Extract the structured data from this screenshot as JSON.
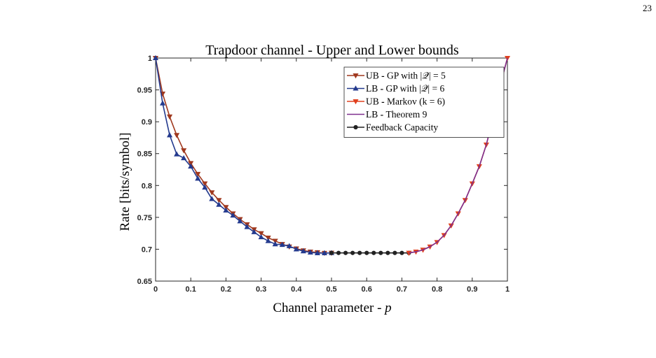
{
  "page_number": "23",
  "chart_data": {
    "type": "line",
    "title": "Trapdoor channel - Upper and Lower bounds",
    "xlabel": "Channel parameter - p",
    "ylabel": "Rate [bits/symbol]",
    "xlim": [
      0,
      1
    ],
    "ylim": [
      0.65,
      1
    ],
    "xticks": [
      "0",
      "0.1",
      "0.2",
      "0.3",
      "0.4",
      "0.5",
      "0.6",
      "0.7",
      "0.8",
      "0.9",
      "1"
    ],
    "yticks": [
      "0.65",
      "0.7",
      "0.75",
      "0.8",
      "0.85",
      "0.9",
      "0.95",
      "1"
    ],
    "grid": false,
    "legend_position": "top-right",
    "series": [
      {
        "name": "UB - GP with |Q| = 5",
        "color": "#a0391f",
        "marker": "triangle-down",
        "x": [
          0,
          0.02,
          0.04,
          0.06,
          0.08,
          0.1,
          0.12,
          0.14,
          0.16,
          0.18,
          0.2,
          0.22,
          0.24,
          0.26,
          0.28,
          0.3,
          0.32,
          0.34,
          0.36,
          0.38,
          0.4,
          0.42,
          0.44,
          0.46,
          0.48,
          0.5
        ],
        "y": [
          1.0,
          0.944,
          0.908,
          0.879,
          0.855,
          0.835,
          0.818,
          0.803,
          0.789,
          0.777,
          0.766,
          0.756,
          0.747,
          0.739,
          0.731,
          0.725,
          0.718,
          0.713,
          0.708,
          0.704,
          0.701,
          0.698,
          0.696,
          0.695,
          0.694,
          0.6942
        ]
      },
      {
        "name": "LB - GP with |Q| = 6",
        "color": "#243a8e",
        "marker": "triangle-up",
        "x": [
          0,
          0.02,
          0.04,
          0.06,
          0.08,
          0.1,
          0.12,
          0.14,
          0.16,
          0.18,
          0.2,
          0.22,
          0.24,
          0.26,
          0.28,
          0.3,
          0.32,
          0.34,
          0.36,
          0.38,
          0.4,
          0.42,
          0.44,
          0.46,
          0.48,
          0.5
        ],
        "y": [
          1.0,
          0.929,
          0.879,
          0.849,
          0.843,
          0.83,
          0.811,
          0.797,
          0.779,
          0.77,
          0.761,
          0.753,
          0.744,
          0.735,
          0.727,
          0.719,
          0.713,
          0.708,
          0.707,
          0.705,
          0.7,
          0.697,
          0.695,
          0.694,
          0.694,
          0.6942
        ]
      },
      {
        "name": "UB - Markov (k = 6)",
        "color": "#e0401f",
        "marker": "triangle-down",
        "x": [
          0.72,
          0.74,
          0.76,
          0.78,
          0.8,
          0.82,
          0.84,
          0.86,
          0.88,
          0.9,
          0.92,
          0.94,
          0.96,
          0.98,
          1.0
        ],
        "y": [
          0.6942,
          0.696,
          0.699,
          0.704,
          0.711,
          0.722,
          0.737,
          0.756,
          0.777,
          0.803,
          0.83,
          0.864,
          0.907,
          0.958,
          1.0
        ]
      },
      {
        "name": "LB - Theorem 9",
        "color": "#7e2f8e",
        "marker": "none",
        "x": [
          0.72,
          0.74,
          0.76,
          0.78,
          0.8,
          0.82,
          0.84,
          0.86,
          0.88,
          0.9,
          0.92,
          0.94,
          0.96,
          0.98,
          1.0
        ],
        "y": [
          0.6942,
          0.696,
          0.699,
          0.704,
          0.711,
          0.722,
          0.737,
          0.756,
          0.777,
          0.803,
          0.83,
          0.864,
          0.907,
          0.958,
          1.0
        ]
      },
      {
        "name": "Feedback Capacity",
        "color": "#222222",
        "marker": "circle",
        "x": [
          0.5,
          0.52,
          0.54,
          0.56,
          0.58,
          0.6,
          0.62,
          0.64,
          0.66,
          0.68,
          0.7,
          0.72
        ],
        "y": [
          0.6942,
          0.6942,
          0.6942,
          0.6942,
          0.6942,
          0.6942,
          0.6942,
          0.6942,
          0.6942,
          0.6942,
          0.6942,
          0.6942
        ]
      }
    ],
    "legend": [
      {
        "prefix": "UB",
        "sep": " - ",
        "text": "GP with |𝒬| = 5"
      },
      {
        "prefix": "LB",
        "sep": " - ",
        "text": "GP with |𝒬| = 6"
      },
      {
        "prefix": "UB",
        "sep": " - ",
        "text": "Markov (k = 6)"
      },
      {
        "prefix": "LB",
        "sep": " - ",
        "text": "Theorem 9"
      },
      {
        "prefix": "",
        "sep": "",
        "text": "Feedback Capacity"
      }
    ]
  }
}
